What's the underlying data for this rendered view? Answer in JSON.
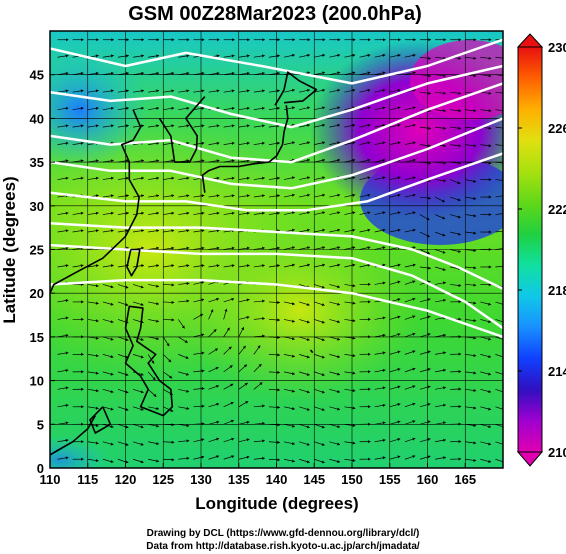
{
  "title": "GSM 00Z28Mar2023 (200.0hPa)",
  "xlabel": "Longitude (degrees)",
  "ylabel": "Latitude (degrees)",
  "credit_line1": "Drawing by DCL (https://www.gfd-dennou.org/library/dcl/)",
  "credit_line2": "Data from http://database.rish.kyoto-u.ac.jp/arch/jmadata/",
  "chart_data": {
    "type": "heatmap",
    "title": "GSM 00Z28Mar2023 (200.0hPa)",
    "xlabel": "Longitude (degrees)",
    "ylabel": "Latitude (degrees)",
    "xlim": [
      110,
      170
    ],
    "ylim": [
      0,
      50
    ],
    "xticks": [
      "110",
      "115",
      "120",
      "125",
      "130",
      "135",
      "140",
      "145",
      "150",
      "155",
      "160",
      "165"
    ],
    "yticks": [
      "0",
      "5",
      "10",
      "15",
      "20",
      "25",
      "30",
      "35",
      "40",
      "45"
    ],
    "grid": true,
    "colorbar": {
      "min": 210,
      "max": 230,
      "ticks": [
        "210",
        "214",
        "218",
        "222",
        "226",
        "230"
      ],
      "colors": [
        "#e000b0",
        "#a000d0",
        "#3010c0",
        "#1040ff",
        "#1890ff",
        "#10c8e8",
        "#10e0a0",
        "#20d040",
        "#60d818",
        "#a8e010",
        "#e0e010",
        "#ffb000",
        "#ff6000",
        "#e81010"
      ]
    },
    "field_summary": [
      {
        "lon": 120,
        "lat": 40,
        "value": 218
      },
      {
        "lon": 130,
        "lat": 20,
        "value": 222
      },
      {
        "lon": 150,
        "lat": 45,
        "value": 213
      },
      {
        "lon": 160,
        "lat": 40,
        "value": 211
      },
      {
        "lon": 165,
        "lat": 30,
        "value": 216
      },
      {
        "lon": 115,
        "lat": 5,
        "value": 220
      }
    ]
  }
}
